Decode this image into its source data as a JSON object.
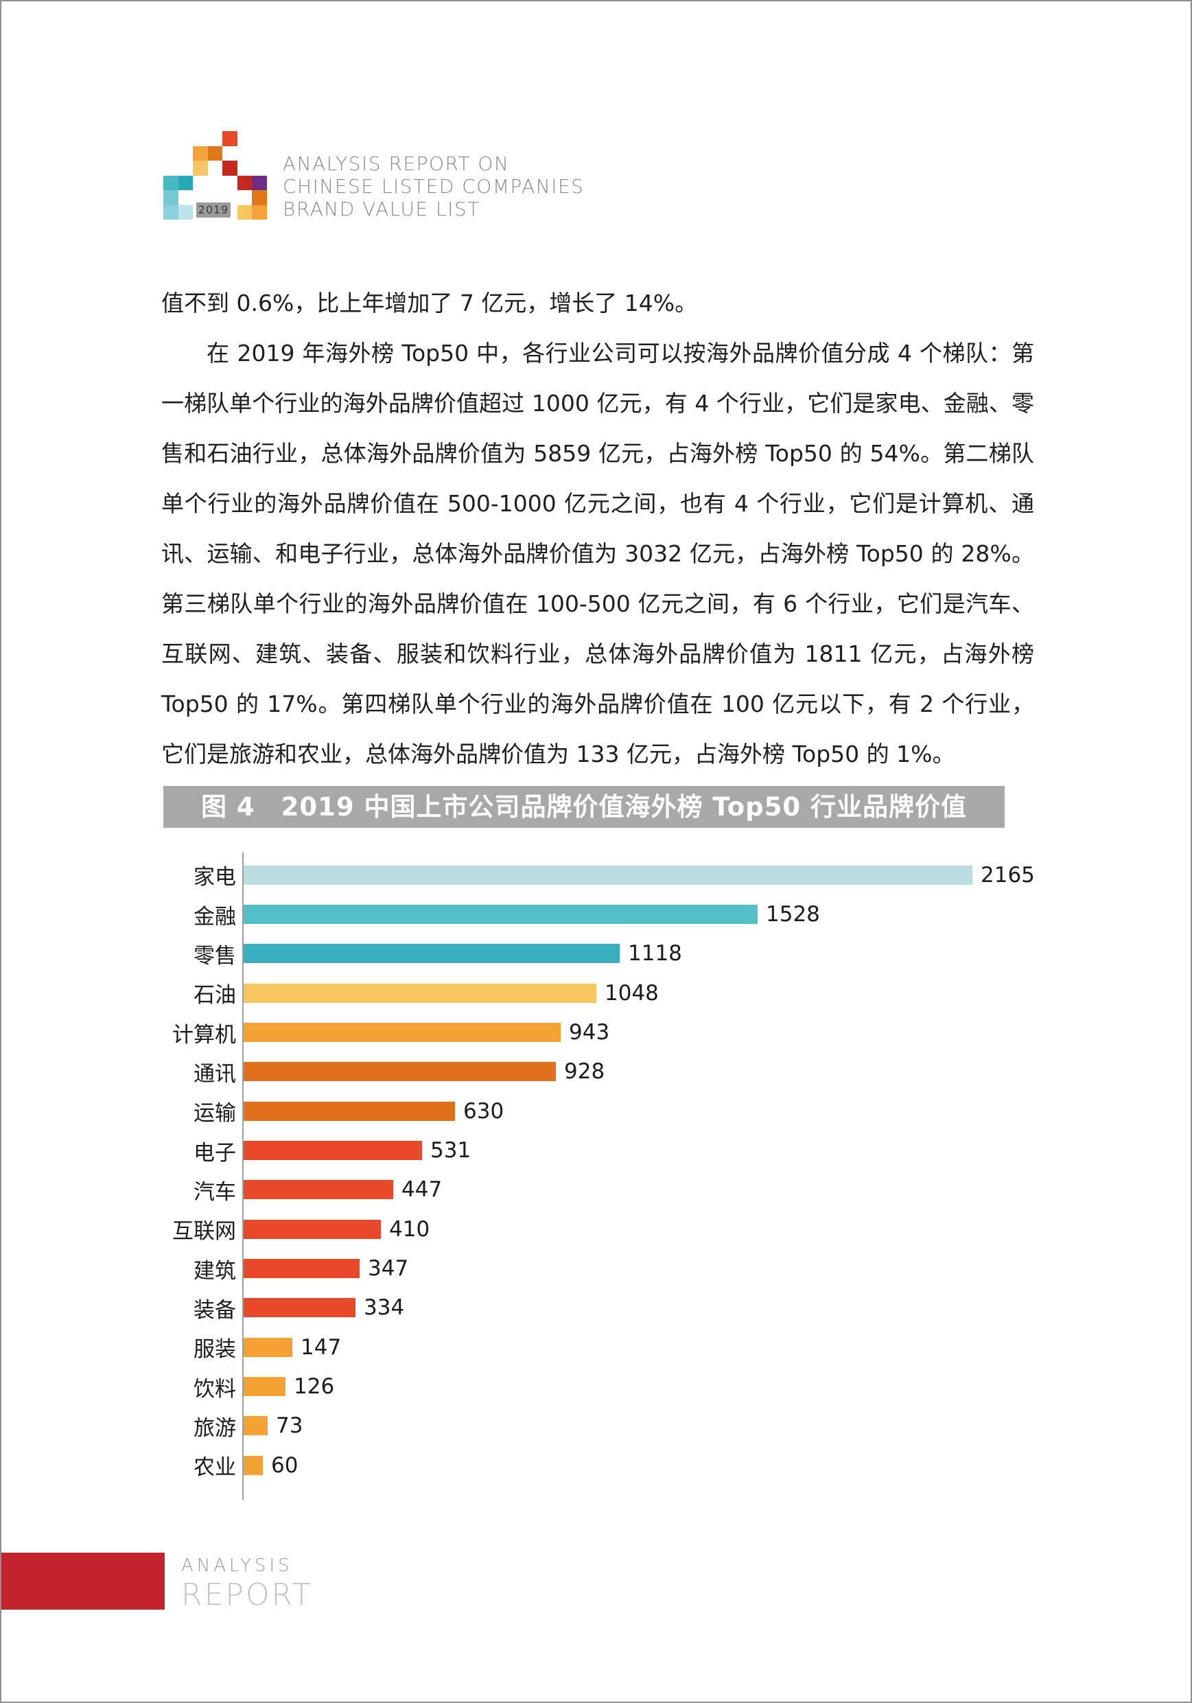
{
  "page": {
    "background": "#ffffff",
    "border_color": "#8f8f8f"
  },
  "header": {
    "logo": {
      "year_label": "2019",
      "year_bg": "#9b9b9b",
      "year_text_color": "#3a3a3a",
      "cell_size": 21.5,
      "squares": [
        {
          "r": 0,
          "c": 4,
          "color": "#e8492b"
        },
        {
          "r": 1,
          "c": 2,
          "color": "#f3a33a"
        },
        {
          "r": 1,
          "c": 3,
          "color": "#e07818"
        },
        {
          "r": 2,
          "c": 2,
          "color": "#f6c469"
        },
        {
          "r": 2,
          "c": 4,
          "color": "#c32a1e"
        },
        {
          "r": 3,
          "c": 0,
          "color": "#45b8c2"
        },
        {
          "r": 3,
          "c": 1,
          "color": "#28a8b4"
        },
        {
          "r": 3,
          "c": 5,
          "color": "#c32a1e"
        },
        {
          "r": 3,
          "c": 6,
          "color": "#6c2d87"
        },
        {
          "r": 4,
          "c": 0,
          "color": "#74c9d3"
        },
        {
          "r": 4,
          "c": 6,
          "color": "#e07818"
        },
        {
          "r": 5,
          "c": 0,
          "color": "#8ad2db"
        },
        {
          "r": 5,
          "c": 1,
          "color": "#bce3ea"
        },
        {
          "r": 5,
          "c": 5,
          "color": "#f8c661"
        },
        {
          "r": 5,
          "c": 6,
          "color": "#f3a33a"
        }
      ]
    },
    "title_lines": [
      "ANALYSIS REPORT ON",
      "CHINESE LISTED COMPANIES",
      "BRAND VALUE LIST"
    ]
  },
  "body": {
    "paragraphs": [
      "值不到 0.6%，比上年增加了 7 亿元，增长了 14%。",
      "在 2019 年海外榜 Top50 中，各行业公司可以按海外品牌价值分成 4 个梯队：第一梯队单个行业的海外品牌价值超过 1000 亿元，有 4 个行业，它们是家电、金融、零售和石油行业，总体海外品牌价值为 5859 亿元，占海外榜 Top50 的 54%。第二梯队单个行业的海外品牌价值在 500-1000 亿元之间，也有 4 个行业，它们是计算机、通讯、运输、和电子行业，总体海外品牌价值为 3032 亿元，占海外榜 Top50 的 28%。第三梯队单个行业的海外品牌价值在 100-500 亿元之间，有 6 个行业，它们是汽车、互联网、建筑、装备、服装和饮料行业，总体海外品牌价值为 1811 亿元，占海外榜 Top50 的 17%。第四梯队单个行业的海外品牌价值在 100 亿元以下，有 2 个行业，它们是旅游和农业，总体海外品牌价值为 133 亿元，占海外榜 Top50 的 1%。"
    ]
  },
  "figure": {
    "caption": "图 4　2019 中国上市公司品牌价值海外榜 Top50 行业品牌价值",
    "caption_bg": "#a8a8a8",
    "caption_text_color": "#ffffff"
  },
  "chart_data": {
    "type": "bar",
    "orientation": "horizontal",
    "title": "图 4 2019 中国上市公司品牌价值海外榜 Top50 行业品牌价值",
    "categories": [
      "家电",
      "金融",
      "零售",
      "石油",
      "计算机",
      "通讯",
      "运输",
      "电子",
      "汽车",
      "互联网",
      "建筑",
      "装备",
      "服装",
      "饮料",
      "旅游",
      "农业"
    ],
    "values": [
      2165,
      1528,
      1118,
      1048,
      943,
      928,
      630,
      531,
      447,
      410,
      347,
      334,
      147,
      126,
      73,
      60
    ],
    "bar_colors": [
      "#b9dde1",
      "#54bec6",
      "#38afbc",
      "#f8c661",
      "#f4a233",
      "#e0711c",
      "#e0711c",
      "#e8492a",
      "#e8492a",
      "#e8492a",
      "#e8492a",
      "#e8492a",
      "#f4a233",
      "#f4a233",
      "#f4a233",
      "#f4a233"
    ],
    "value_labels": "end",
    "xlim": [
      0,
      2200
    ],
    "grid": false,
    "legend": "none",
    "axis_color": "#9e9e9e"
  },
  "footer": {
    "line1": "ANALYSIS",
    "line2": "REPORT",
    "accent_color": "#c3242b"
  }
}
